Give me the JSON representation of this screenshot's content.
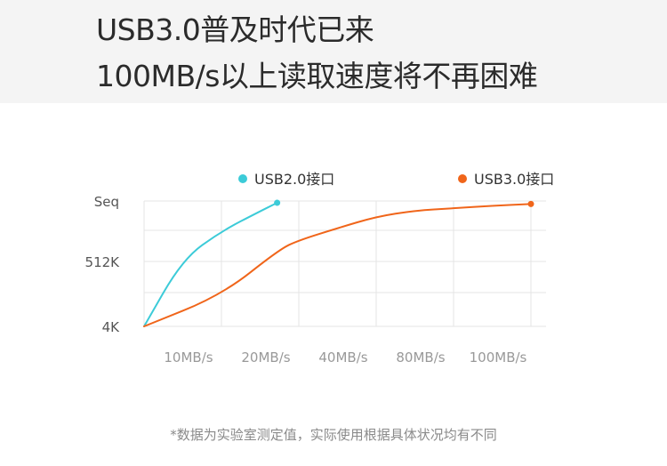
{
  "header": {
    "line1": "USB3.0普及时代已来",
    "line2": "100MB/s以上读取速度将不再困难"
  },
  "footnote": "*数据为实验室测定值，实际使用根据具体状况均有不同",
  "colors": {
    "header_bg": "#f4f4f4",
    "grid": "#e4e4e4",
    "axis_text": "#999999",
    "usb2": "#3ccbd8",
    "usb3": "#f0651a"
  },
  "chart_data": {
    "type": "line",
    "title": "",
    "xlabel": "",
    "ylabel": "",
    "x_categories": [
      "10MB/s",
      "20MB/s",
      "40MB/s",
      "80MB/s",
      "100MB/s"
    ],
    "y_categories": [
      "4K",
      "512K",
      "Seq"
    ],
    "grid": true,
    "legend_position": "top",
    "series": [
      {
        "name": "USB2.0接口",
        "color": "#3ccbd8",
        "x": [
          0,
          0.5,
          1,
          1.5,
          1.72
        ],
        "y": [
          0,
          1.04,
          1.5,
          1.83,
          1.97
        ]
      },
      {
        "name": "USB3.0接口",
        "color": "#f0651a",
        "x": [
          0,
          1,
          1.75,
          2,
          2.5,
          3,
          3.5,
          4,
          4.5,
          5
        ],
        "y": [
          0,
          0.48,
          1.2,
          1.35,
          1.55,
          1.74,
          1.84,
          1.88,
          1.92,
          1.95
        ]
      }
    ]
  }
}
